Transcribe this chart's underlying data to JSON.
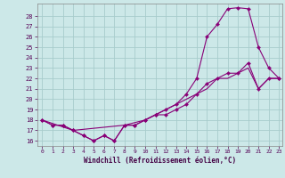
{
  "xlabel": "Windchill (Refroidissement éolien,°C)",
  "xlim_min": -0.5,
  "xlim_max": 23.3,
  "ylim_min": 15.5,
  "ylim_max": 29.2,
  "yticks": [
    16,
    17,
    18,
    19,
    20,
    21,
    22,
    23,
    24,
    25,
    26,
    27,
    28
  ],
  "xticks": [
    0,
    1,
    2,
    3,
    4,
    5,
    6,
    7,
    8,
    9,
    10,
    11,
    12,
    13,
    14,
    15,
    16,
    17,
    18,
    19,
    20,
    21,
    22,
    23
  ],
  "bg_color": "#cce8e8",
  "grid_color": "#a8cccc",
  "line_color": "#880077",
  "line1_x": [
    0,
    1,
    2,
    3,
    4,
    5,
    6,
    7,
    8,
    9,
    10,
    11,
    12,
    13,
    14,
    15,
    16,
    17,
    18,
    19,
    20,
    21,
    22,
    23
  ],
  "line1_y": [
    18,
    17.5,
    17.5,
    17,
    16.5,
    16,
    16.5,
    16,
    17.5,
    17.5,
    18,
    18.5,
    19,
    19.5,
    20.5,
    22,
    26,
    27.2,
    28.7,
    28.8,
    28.7,
    25,
    23,
    22
  ],
  "line2_x": [
    0,
    1,
    2,
    3,
    4,
    5,
    6,
    7,
    8,
    9,
    10,
    11,
    12,
    13,
    14,
    15,
    16,
    17,
    18,
    19,
    20,
    21,
    22,
    23
  ],
  "line2_y": [
    18,
    17.5,
    17.5,
    17,
    16.5,
    16,
    16.5,
    16,
    17.5,
    17.5,
    18,
    18.5,
    18.5,
    19,
    19.5,
    20.5,
    21.5,
    22,
    22.5,
    22.5,
    23.5,
    21,
    22,
    22
  ],
  "line3_x": [
    0,
    3,
    8,
    10,
    12,
    13,
    14,
    15,
    16,
    17,
    18,
    19,
    20,
    21,
    22,
    23
  ],
  "line3_y": [
    18,
    17,
    17.5,
    18,
    19,
    19.5,
    20,
    20.5,
    21,
    22,
    22,
    22.5,
    23,
    21,
    22,
    22
  ]
}
